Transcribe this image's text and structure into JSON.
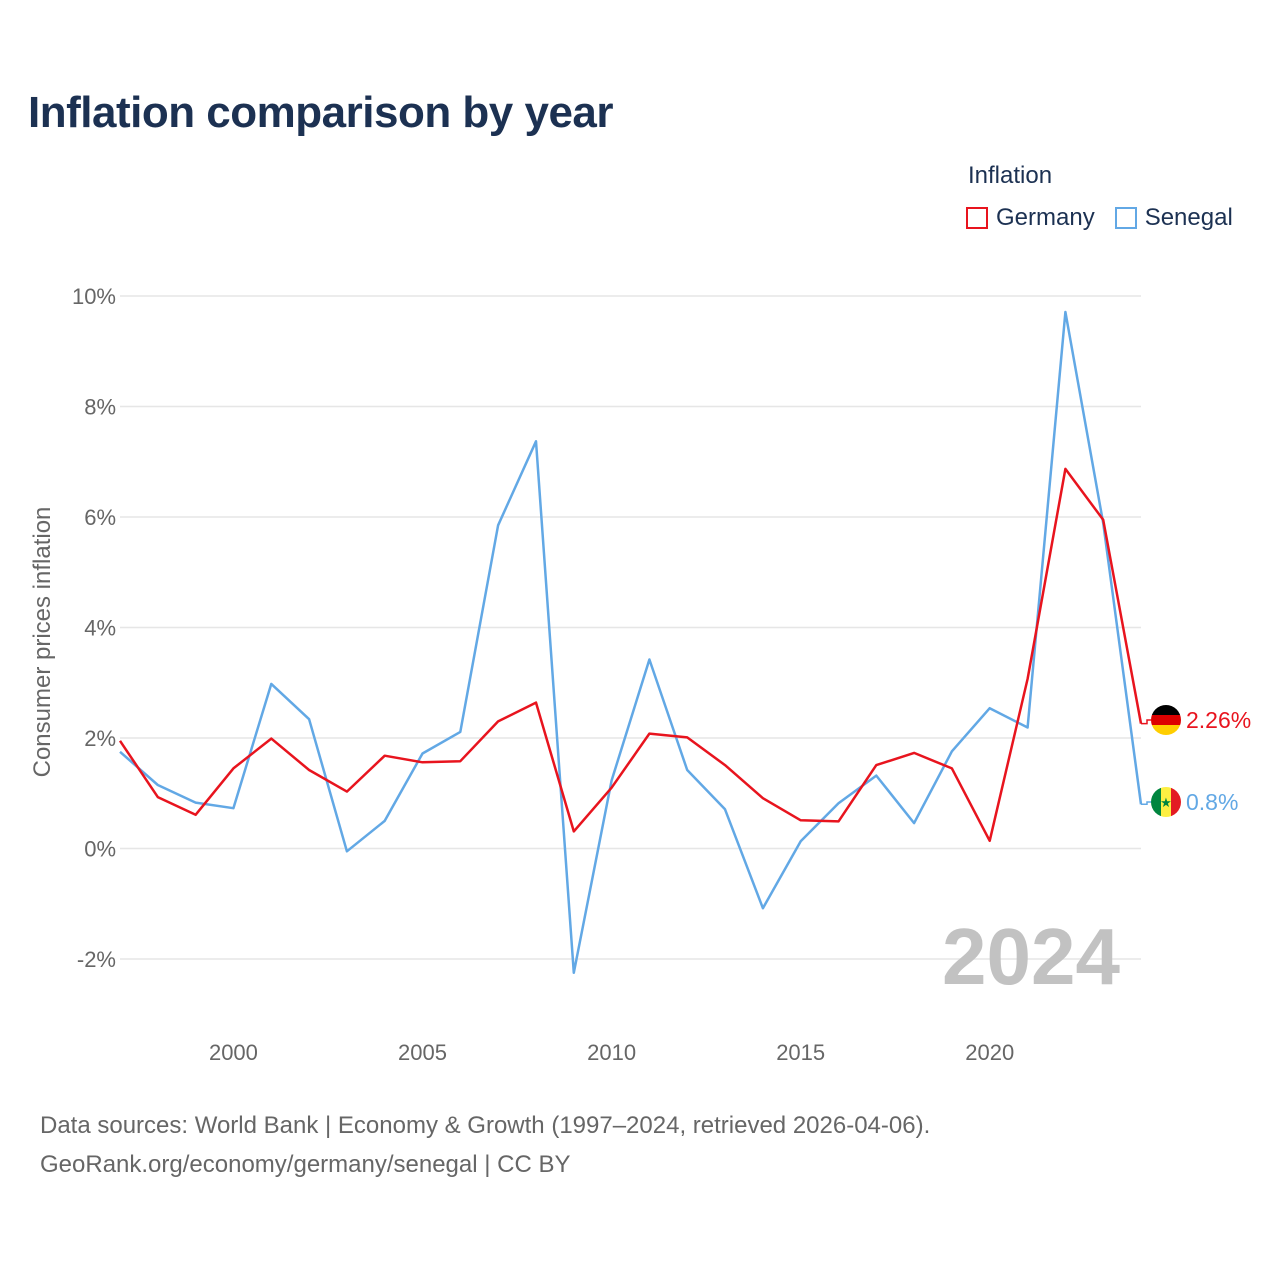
{
  "title": "Inflation comparison by year",
  "legend": {
    "title": "Inflation",
    "items": [
      {
        "label": "Germany",
        "color": "#e8141e"
      },
      {
        "label": "Senegal",
        "color": "#62a8e5"
      }
    ]
  },
  "source": {
    "line1": "Data sources: World Bank | Economy & Growth (1997–2024, retrieved 2026-04-06).",
    "line2": "GeoRank.org/economy/germany/senegal | CC BY"
  },
  "chart_data": {
    "type": "line",
    "title": "Inflation comparison by year",
    "xlabel": "",
    "ylabel": "Consumer prices inflation",
    "xlim": [
      1997,
      2024
    ],
    "ylim": [
      -2,
      10
    ],
    "x_ticks": [
      2000,
      2005,
      2010,
      2015,
      2020
    ],
    "y_ticks": [
      -2,
      0,
      2,
      4,
      6,
      8,
      10
    ],
    "y_tick_labels": [
      "-2%",
      "0%",
      "2%",
      "4%",
      "6%",
      "8%",
      "10%"
    ],
    "grid": true,
    "legend_position": "top-right",
    "watermark_year": "2024",
    "x": [
      1997,
      1998,
      1999,
      2000,
      2001,
      2002,
      2003,
      2004,
      2005,
      2006,
      2007,
      2008,
      2009,
      2010,
      2011,
      2012,
      2013,
      2014,
      2015,
      2016,
      2017,
      2018,
      2019,
      2020,
      2021,
      2022,
      2023,
      2024
    ],
    "series": [
      {
        "name": "Germany",
        "color": "#e8141e",
        "end_label": "2.26%",
        "flag": "germany-flag",
        "values": [
          1.95,
          0.93,
          0.61,
          1.45,
          1.99,
          1.42,
          1.03,
          1.68,
          1.56,
          1.58,
          2.3,
          2.64,
          0.31,
          1.1,
          2.08,
          2.01,
          1.51,
          0.91,
          0.51,
          0.49,
          1.51,
          1.73,
          1.45,
          0.14,
          3.07,
          6.87,
          5.95,
          2.26
        ]
      },
      {
        "name": "Senegal",
        "color": "#62a8e5",
        "end_label": "0.8%",
        "flag": "senegal-flag",
        "values": [
          1.75,
          1.15,
          0.83,
          0.73,
          2.98,
          2.34,
          -0.05,
          0.5,
          1.72,
          2.11,
          5.85,
          7.37,
          -2.25,
          1.23,
          3.42,
          1.42,
          0.71,
          -1.08,
          0.13,
          0.82,
          1.32,
          0.46,
          1.76,
          2.54,
          2.19,
          9.71,
          5.89,
          0.8
        ]
      }
    ]
  }
}
